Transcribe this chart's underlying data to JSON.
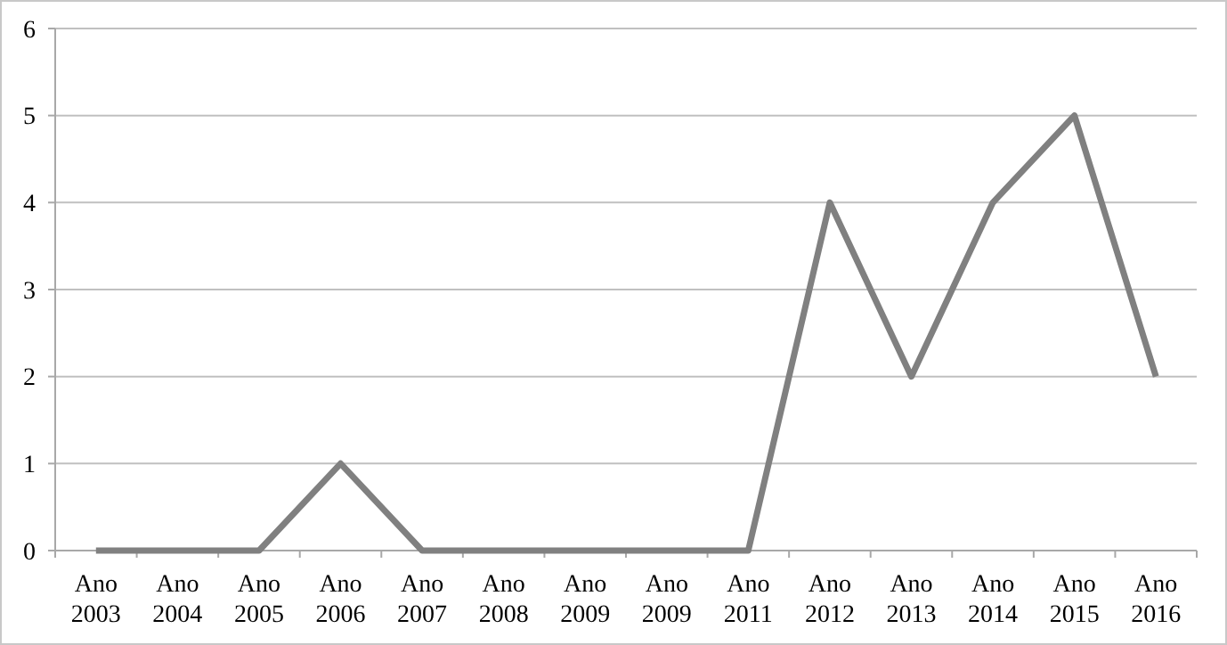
{
  "chart_data": {
    "type": "line",
    "categories": [
      "Ano 2003",
      "Ano 2004",
      "Ano 2005",
      "Ano 2006",
      "Ano 2007",
      "Ano 2008",
      "Ano 2009",
      "Ano 2009",
      "Ano 2011",
      "Ano 2012",
      "Ano 2013",
      "Ano 2014",
      "Ano 2015",
      "Ano 2016"
    ],
    "series": [
      {
        "color": "#808080",
        "values": [
          0,
          0,
          0,
          1,
          0,
          0,
          0,
          0,
          0,
          4,
          2,
          4,
          5,
          2
        ]
      }
    ],
    "ylim": [
      0,
      6
    ],
    "yticks": [
      0,
      1,
      2,
      3,
      4,
      5,
      6
    ],
    "grid": "y",
    "marker": "none",
    "line_style": "solid"
  }
}
